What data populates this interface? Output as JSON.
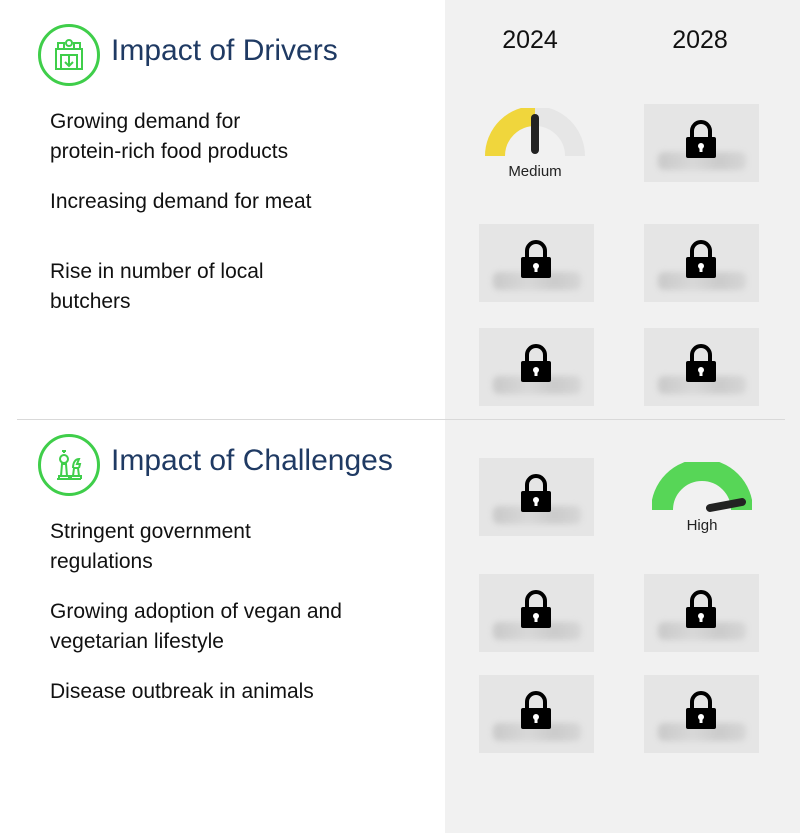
{
  "years": [
    "2024",
    "2028"
  ],
  "drivers": {
    "title": "Impact of Drivers",
    "icon": "factory-icon",
    "items": [
      [
        "Growing demand for",
        "protein-rich food products"
      ],
      [
        "Increasing demand for meat"
      ],
      [
        "Rise in number of local",
        "butchers"
      ]
    ]
  },
  "challenges": {
    "title": "Impact of Challenges",
    "icon": "chess-pieces-icon",
    "items": [
      [
        "Stringent government",
        "regulations"
      ],
      [
        "Growing adoption of vegan and",
        "vegetarian lifestyle"
      ],
      [
        "Disease outbreak in animals"
      ]
    ]
  },
  "impact": {
    "driver_1_2024": {
      "level": "Medium",
      "fraction": 0.5
    },
    "challenge_1_2028": {
      "level": "High",
      "fraction": 0.95
    }
  },
  "colors": {
    "accent_green": "#3fce4a",
    "medium_yellow": "#f0d63c",
    "high_green": "#57d657",
    "title_blue": "#1f3a63",
    "panel_gray": "#f1f1f1"
  }
}
